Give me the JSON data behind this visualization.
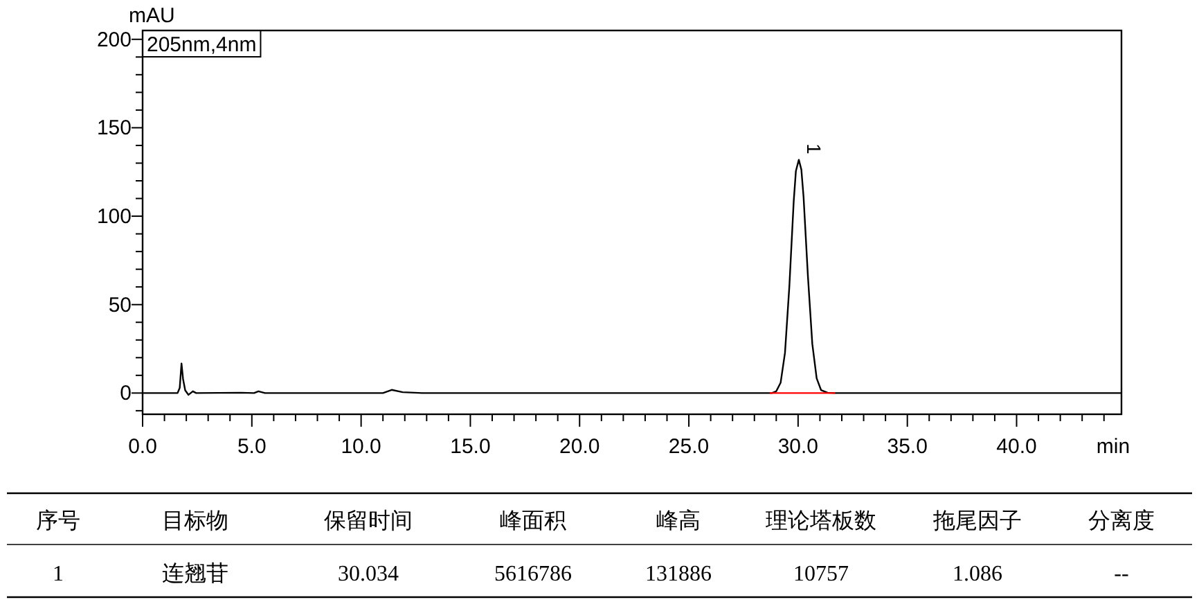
{
  "chart_data": [
    {
      "type": "line",
      "xlabel": "min",
      "ylabel": "mAU",
      "xlim": [
        0,
        44.8
      ],
      "ylim": [
        -12,
        205
      ],
      "xticks": [
        {
          "value": 0,
          "label": "0.0"
        },
        {
          "value": 1,
          "label": null
        },
        {
          "value": 2,
          "label": null
        },
        {
          "value": 3,
          "label": null
        },
        {
          "value": 4,
          "label": null
        },
        {
          "value": 5,
          "label": "5.0"
        },
        {
          "value": 6,
          "label": null
        },
        {
          "value": 7,
          "label": null
        },
        {
          "value": 8,
          "label": null
        },
        {
          "value": 9,
          "label": null
        },
        {
          "value": 10,
          "label": "10.0"
        },
        {
          "value": 11,
          "label": null
        },
        {
          "value": 12,
          "label": null
        },
        {
          "value": 13,
          "label": null
        },
        {
          "value": 14,
          "label": null
        },
        {
          "value": 15,
          "label": "15.0"
        },
        {
          "value": 16,
          "label": null
        },
        {
          "value": 17,
          "label": null
        },
        {
          "value": 18,
          "label": null
        },
        {
          "value": 19,
          "label": null
        },
        {
          "value": 20,
          "label": "20.0"
        },
        {
          "value": 21,
          "label": null
        },
        {
          "value": 22,
          "label": null
        },
        {
          "value": 23,
          "label": null
        },
        {
          "value": 24,
          "label": null
        },
        {
          "value": 25,
          "label": "25.0"
        },
        {
          "value": 26,
          "label": null
        },
        {
          "value": 27,
          "label": null
        },
        {
          "value": 28,
          "label": null
        },
        {
          "value": 29,
          "label": null
        },
        {
          "value": 30,
          "label": "30.0"
        },
        {
          "value": 31,
          "label": null
        },
        {
          "value": 32,
          "label": null
        },
        {
          "value": 33,
          "label": null
        },
        {
          "value": 34,
          "label": null
        },
        {
          "value": 35,
          "label": "35.0"
        },
        {
          "value": 36,
          "label": null
        },
        {
          "value": 37,
          "label": null
        },
        {
          "value": 38,
          "label": null
        },
        {
          "value": 39,
          "label": null
        },
        {
          "value": 40,
          "label": "40.0"
        },
        {
          "value": 41,
          "label": null
        },
        {
          "value": 42,
          "label": null
        },
        {
          "value": 43,
          "label": null
        },
        {
          "value": 44,
          "label": null
        }
      ],
      "yticks": [
        {
          "value": -10,
          "label": null
        },
        0,
        {
          "value": 10,
          "label": null
        },
        {
          "value": 20,
          "label": null
        },
        {
          "value": 30,
          "label": null
        },
        {
          "value": 40,
          "label": null
        },
        50,
        {
          "value": 60,
          "label": null
        },
        {
          "value": 70,
          "label": null
        },
        {
          "value": 80,
          "label": null
        },
        {
          "value": 90,
          "label": null
        },
        100,
        {
          "value": 110,
          "label": null
        },
        {
          "value": 120,
          "label": null
        },
        {
          "value": 130,
          "label": null
        },
        {
          "value": 140,
          "label": null
        },
        150,
        {
          "value": 160,
          "label": null
        },
        {
          "value": 170,
          "label": null
        },
        {
          "value": 180,
          "label": null
        },
        {
          "value": 190,
          "label": null
        },
        200
      ],
      "annotations": [
        "205nm,4nm",
        {
          "text": "1",
          "x": 30.034,
          "y": 131.9
        }
      ],
      "series": [
        {
          "color": "#000000",
          "x": [
            0,
            1.6,
            1.7,
            1.78,
            1.85,
            1.95,
            2.1,
            2.3,
            2.45,
            4.5,
            5.1,
            5.3,
            5.6,
            11.0,
            11.4,
            11.9,
            12.8,
            28.8,
            29.0,
            29.2,
            29.4,
            29.6,
            29.8,
            29.9,
            30.034,
            30.15,
            30.25,
            30.45,
            30.65,
            30.85,
            31.05,
            31.35,
            31.7,
            41.5,
            44.8
          ],
          "values": [
            0,
            0,
            3,
            16.7,
            8,
            1.5,
            -1,
            1,
            0,
            0.2,
            0,
            1,
            0,
            0,
            1.8,
            0.5,
            0,
            0,
            1,
            5.8,
            22.7,
            60.4,
            108.5,
            125.6,
            131.9,
            126.3,
            111,
            66,
            27.8,
            8.3,
            1.7,
            0.2,
            0,
            0,
            0
          ]
        },
        {
          "type": "line",
          "color": "#ff0000",
          "x": [
            28.7,
            31.7
          ],
          "values": [
            0,
            0
          ]
        }
      ]
    },
    {
      "type": "other",
      "categories": [
        "序号",
        "目标物",
        "保留时间",
        "峰面积",
        "峰高",
        "理论塔板数",
        "拖尾因子",
        "分离度"
      ],
      "value_labels": [
        "1",
        "连翘苷",
        "30.034",
        "5616786",
        "131886",
        "10757",
        "1.086",
        "--"
      ]
    }
  ]
}
